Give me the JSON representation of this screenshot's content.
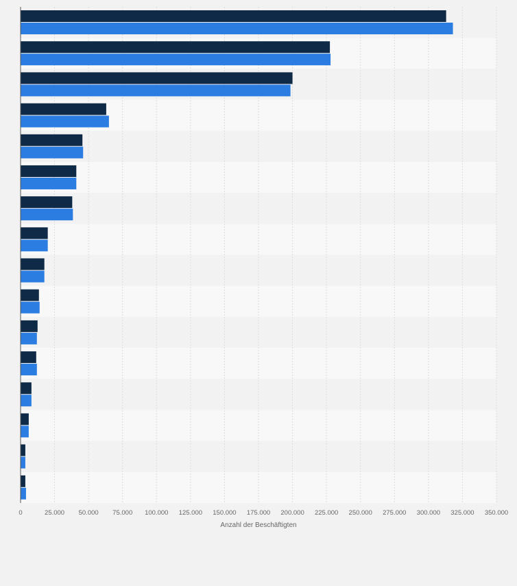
{
  "chart_data": {
    "type": "bar",
    "orientation": "horizontal",
    "categories": [
      "",
      "",
      "",
      "",
      "",
      "",
      "",
      "",
      "",
      "",
      "",
      "",
      "",
      "",
      "",
      ""
    ],
    "series": [
      {
        "color": "#0f2a47",
        "values": [
          313000,
          227500,
          200000,
          63000,
          45500,
          41000,
          38000,
          20000,
          17500,
          13500,
          12500,
          11500,
          8000,
          6000,
          3500,
          3500
        ]
      },
      {
        "color": "#2b7de1",
        "values": [
          318000,
          228000,
          198500,
          65000,
          46000,
          41000,
          38500,
          20000,
          17500,
          14000,
          12000,
          12000,
          8000,
          6000,
          3500,
          4000
        ]
      }
    ],
    "xlabel": "Anzahl der Beschäftigten",
    "xlim": [
      0,
      350000
    ],
    "x_ticks": [
      0,
      25000,
      50000,
      75000,
      100000,
      125000,
      150000,
      175000,
      200000,
      225000,
      250000,
      275000,
      300000,
      325000,
      350000
    ],
    "x_tick_labels": [
      "0",
      "25.000",
      "50.000",
      "75.000",
      "100.000",
      "125.000",
      "150.000",
      "175.000",
      "200.000",
      "225.000",
      "250.000",
      "275.000",
      "300.000",
      "325.000",
      "350.000"
    ],
    "grid": true,
    "legend": "none"
  }
}
